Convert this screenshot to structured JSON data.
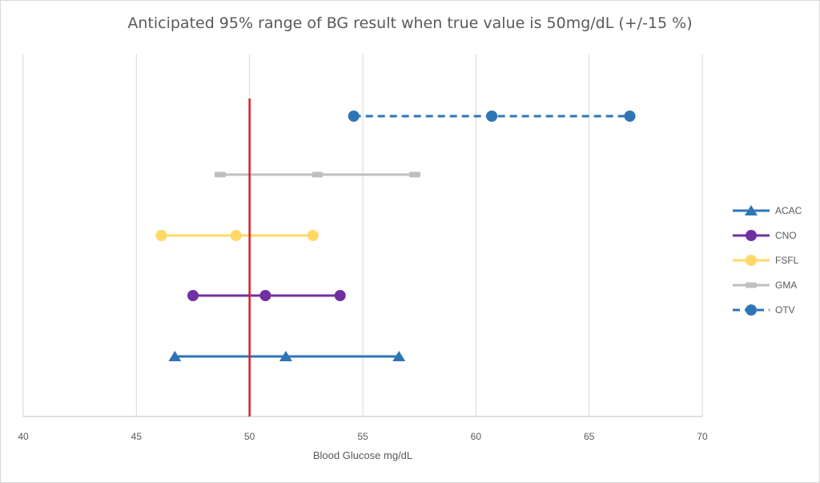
{
  "chart_data": {
    "type": "scatter",
    "title": "Anticipated  95% range of BG result when true value is 50mg/dL (+/-15 %)",
    "xlabel": "Blood Glucose mg/dL",
    "ylabel": "",
    "xlim": [
      40,
      70
    ],
    "xticks": [
      "40",
      "45",
      "50",
      "55",
      "60",
      "65",
      "70"
    ],
    "grid": "vertical",
    "legend": "right",
    "reference_line": {
      "x": 50,
      "color": "#e41a1c"
    },
    "series": [
      {
        "name": "ACAC",
        "color": "#2e75b6",
        "marker": "triangle",
        "dash": false,
        "x": [
          46.7,
          51.6,
          56.6
        ],
        "y": [
          1,
          1,
          1
        ]
      },
      {
        "name": "CNO",
        "color": "#7030a0",
        "marker": "circle",
        "dash": false,
        "x": [
          47.5,
          50.7,
          54.0
        ],
        "y": [
          2,
          2,
          2
        ]
      },
      {
        "name": "FSFL",
        "color": "#ffd966",
        "marker": "circle",
        "dash": false,
        "x": [
          46.1,
          49.4,
          52.8
        ],
        "y": [
          3,
          3,
          3
        ]
      },
      {
        "name": "GMA",
        "color": "#bfbfbf",
        "marker": "square",
        "dash": false,
        "x": [
          48.7,
          53.0,
          57.3
        ],
        "y": [
          4,
          4,
          4
        ]
      },
      {
        "name": "OTV",
        "color": "#2e75b6",
        "marker": "circle",
        "dash": true,
        "x": [
          54.6,
          60.7,
          66.8
        ],
        "y": [
          5,
          5,
          5
        ]
      }
    ]
  }
}
